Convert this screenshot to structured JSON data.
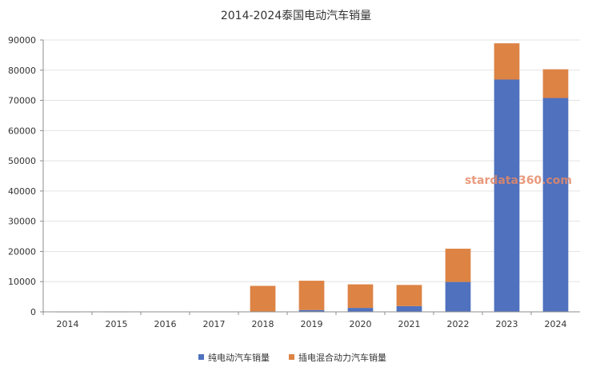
{
  "chart_data": {
    "type": "bar",
    "stacked": true,
    "title": "2014-2024泰国电动汽车销量",
    "xlabel": "",
    "ylabel": "",
    "categories": [
      "2014",
      "2015",
      "2016",
      "2017",
      "2018",
      "2019",
      "2020",
      "2021",
      "2022",
      "2023",
      "2024"
    ],
    "series": [
      {
        "name": "纯电动汽车销量",
        "color": "#4f71be",
        "values": [
          10,
          20,
          50,
          100,
          0,
          600,
          1300,
          1900,
          9900,
          76900,
          70800
        ]
      },
      {
        "name": "插电混合动力汽车销量",
        "color": "#dd8344",
        "values": [
          0,
          0,
          0,
          0,
          8600,
          9700,
          7800,
          7000,
          11000,
          12000,
          9500
        ]
      }
    ],
    "ylim": [
      0,
      90000
    ],
    "yticks": [
      "0",
      "10000",
      "20000",
      "30000",
      "40000",
      "50000",
      "60000",
      "70000",
      "80000",
      "90000"
    ],
    "grid": true,
    "legend_position": "bottom",
    "watermark": "stardata360.com"
  }
}
